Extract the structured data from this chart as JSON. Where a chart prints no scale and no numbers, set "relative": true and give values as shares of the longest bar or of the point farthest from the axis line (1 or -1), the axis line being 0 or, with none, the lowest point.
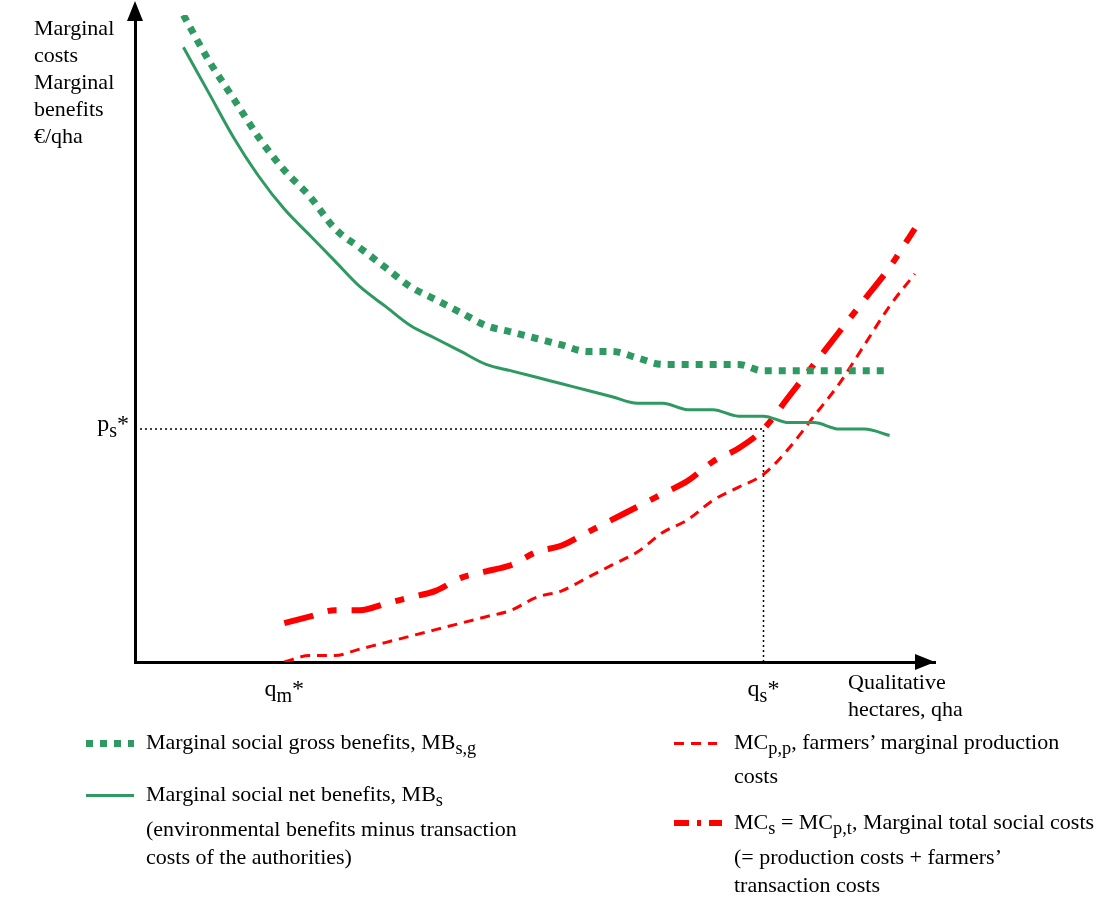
{
  "chart_data": {
    "type": "line",
    "relative": true,
    "ylabel": "Marginal costs Marginal benefits €/qha",
    "xlabel": "Qualitative hectares, qha",
    "categories": [
      null,
      null,
      null,
      null,
      "q$_{m}$*",
      null,
      null,
      null,
      null,
      null,
      null,
      null,
      null,
      null,
      null,
      null,
      null,
      null,
      null,
      null,
      null,
      null,
      null,
      "q$_{s}$*",
      null,
      null,
      null,
      null,
      null,
      null
    ],
    "series": [
      {
        "name": "Marginal social gross benefits, MB$_{s,g}$",
        "color": "#2e9a62",
        "line_style": "dotted",
        "values": [
          1.0,
          0.93,
          0.87,
          0.81,
          0.76,
          0.72,
          0.67,
          0.64,
          0.61,
          0.58,
          0.56,
          0.54,
          0.52,
          0.51,
          0.5,
          0.49,
          0.48,
          0.48,
          0.47,
          0.46,
          0.46,
          0.46,
          0.46,
          0.45,
          0.45,
          0.45,
          0.45,
          0.45,
          0.45,
          null
        ]
      },
      {
        "name": "Marginal social net benefits, MB$_{s}$ (environmental benefits minus transaction costs of the authorities)",
        "color": "#2e9a62",
        "line_style": "solid",
        "values": [
          0.95,
          0.88,
          0.81,
          0.75,
          0.7,
          0.66,
          0.62,
          0.58,
          0.55,
          0.52,
          0.5,
          0.48,
          0.46,
          0.45,
          0.44,
          0.43,
          0.42,
          0.41,
          0.4,
          0.4,
          0.39,
          0.39,
          0.38,
          0.38,
          0.37,
          0.37,
          0.36,
          0.36,
          0.35,
          null
        ]
      },
      {
        "name": "MC$_{p,p}$, farmers’ marginal production costs",
        "color": "#ff0000",
        "line_style": "dashed",
        "values": [
          null,
          null,
          null,
          null,
          0,
          0.01,
          0.01,
          0.02,
          0.03,
          0.04,
          0.05,
          0.06,
          0.07,
          0.08,
          0.1,
          0.11,
          0.13,
          0.15,
          0.17,
          0.2,
          0.22,
          0.25,
          0.27,
          0.29,
          0.33,
          0.38,
          0.43,
          0.49,
          0.55,
          0.6
        ]
      },
      {
        "name": "MC$_{s}$ = MC$_{p,t}$, Marginal total social costs (= production costs + farmers’ transaction costs",
        "color": "#ff0000",
        "line_style": "dashed",
        "values": [
          null,
          null,
          null,
          null,
          0.06,
          0.07,
          0.08,
          0.08,
          0.09,
          0.1,
          0.11,
          0.13,
          0.14,
          0.15,
          0.17,
          0.18,
          0.2,
          0.22,
          0.24,
          0.26,
          0.28,
          0.31,
          0.33,
          0.36,
          0.41,
          0.46,
          0.51,
          0.56,
          0.61,
          0.67
        ]
      }
    ],
    "ref_lines": [
      {
        "axis": "y",
        "value": 0.36,
        "label": "p$_{s}$*",
        "line_style": "dotted"
      },
      {
        "axis": "x",
        "value": "q$_{s}$*",
        "line_style": "dotted"
      }
    ],
    "legend": "bottom",
    "grid": false,
    "marker": "none"
  }
}
